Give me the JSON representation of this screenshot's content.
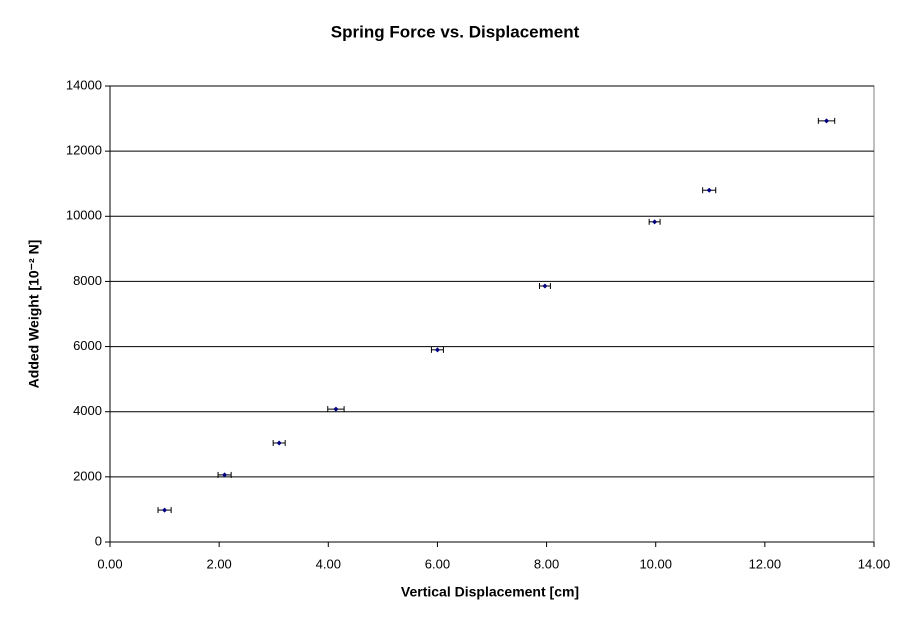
{
  "chart_data": {
    "type": "scatter",
    "title": "Spring Force vs. Displacement",
    "x_label": "Vertical Displacement [cm]",
    "y_label": "Added Weight [10⁻² N]",
    "x": [
      1.0,
      2.1,
      3.1,
      4.14,
      6.0,
      7.97,
      9.98,
      10.98,
      13.13
    ],
    "values": [
      980,
      2060,
      3040,
      4080,
      5900,
      7860,
      9830,
      10800,
      12930
    ],
    "x_errors": [
      0.12,
      0.12,
      0.11,
      0.15,
      0.11,
      0.1,
      0.1,
      0.12,
      0.15
    ],
    "color": "#000080",
    "error_color": "#000000",
    "xlim": [
      0,
      14
    ],
    "ylim": [
      0,
      14000
    ],
    "xticks": [
      {
        "value": 0,
        "label": "0.00"
      },
      {
        "value": 2,
        "label": "2.00"
      },
      {
        "value": 4,
        "label": "4.00"
      },
      {
        "value": 6,
        "label": "6.00"
      },
      {
        "value": 8,
        "label": "8.00"
      },
      {
        "value": 10,
        "label": "10.00"
      },
      {
        "value": 12,
        "label": "12.00"
      },
      {
        "value": 14,
        "label": "14.00"
      }
    ],
    "yticks": [
      0,
      2000,
      4000,
      6000,
      8000,
      10000,
      12000,
      14000
    ],
    "grid": true
  }
}
